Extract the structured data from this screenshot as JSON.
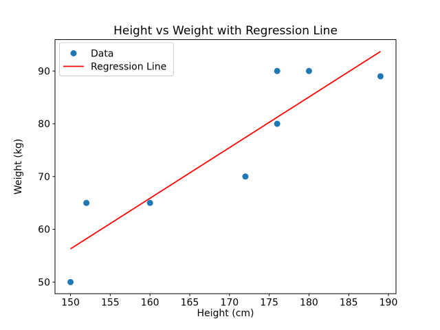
{
  "chart_data": {
    "type": "scatter",
    "title": "Height vs Weight with Regression Line",
    "xlabel": "Height (cm)",
    "ylabel": "Weight (kg)",
    "xlim": [
      148.05,
      190.95
    ],
    "ylim": [
      47.8,
      95.95
    ],
    "x_ticks": [
      150,
      155,
      160,
      165,
      170,
      175,
      180,
      185,
      190
    ],
    "y_ticks": [
      50,
      60,
      70,
      80,
      90
    ],
    "grid": false,
    "legend_position": "upper left",
    "series": [
      {
        "name": "Data",
        "kind": "scatter",
        "color": "#1f77b4",
        "points": [
          [
            150,
            50
          ],
          [
            152,
            65
          ],
          [
            160,
            65
          ],
          [
            172,
            70
          ],
          [
            176,
            80
          ],
          [
            176,
            90
          ],
          [
            180,
            90
          ],
          [
            189,
            89
          ]
        ]
      },
      {
        "name": "Regression Line",
        "kind": "line",
        "color": "#ff0000",
        "points": [
          [
            150,
            56.3
          ],
          [
            189,
            93.7
          ]
        ]
      }
    ]
  },
  "colors": {
    "scatter": "#1f77b4",
    "regression": "#ff0000",
    "spine": "#000000",
    "legend_border": "#cccccc",
    "background": "#ffffff"
  },
  "legend": {
    "data_label": "Data",
    "line_label": "Regression Line"
  }
}
